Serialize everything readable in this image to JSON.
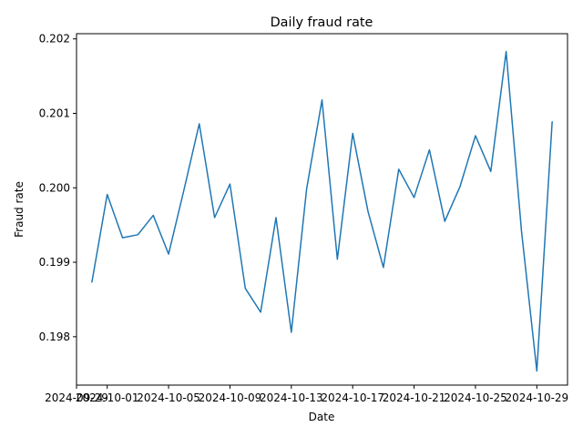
{
  "chart_data": {
    "type": "line",
    "title": "Daily fraud rate",
    "xlabel": "Date",
    "ylabel": "Fraud rate",
    "x_ticks": [
      "2024-09-29",
      "2024-10-01",
      "2024-10-05",
      "2024-10-09",
      "2024-10-13",
      "2024-10-17",
      "2024-10-21",
      "2024-10-25",
      "2024-10-29"
    ],
    "y_ticks": [
      "0.198",
      "0.199",
      "0.200",
      "0.201",
      "0.202"
    ],
    "ylim": [
      0.19735,
      0.20207
    ],
    "xlim": [
      "2024-09-29",
      "2024-10-31"
    ],
    "grid": false,
    "color": "#1f77b4",
    "series": [
      {
        "x": [
          "2024-09-30",
          "2024-10-01",
          "2024-10-02",
          "2024-10-03",
          "2024-10-04",
          "2024-10-05",
          "2024-10-06",
          "2024-10-07",
          "2024-10-08",
          "2024-10-09",
          "2024-10-10",
          "2024-10-11",
          "2024-10-12",
          "2024-10-13",
          "2024-10-14",
          "2024-10-15",
          "2024-10-16",
          "2024-10-17",
          "2024-10-18",
          "2024-10-19",
          "2024-10-20",
          "2024-10-21",
          "2024-10-22",
          "2024-10-23",
          "2024-10-24",
          "2024-10-25",
          "2024-10-26",
          "2024-10-27",
          "2024-10-28",
          "2024-10-29",
          "2024-10-30"
        ],
        "values": [
          0.19873,
          0.19991,
          0.19933,
          0.19937,
          0.19963,
          0.19911,
          0.19997,
          0.20086,
          0.1996,
          0.20005,
          0.19865,
          0.19833,
          0.1996,
          0.19806,
          0.19999,
          0.20118,
          0.19904,
          0.20073,
          0.19968,
          0.19893,
          0.20025,
          0.19987,
          0.20051,
          0.19955,
          0.20002,
          0.2007,
          0.20022,
          0.20183,
          0.19942,
          0.19754,
          0.20089
        ]
      }
    ]
  }
}
